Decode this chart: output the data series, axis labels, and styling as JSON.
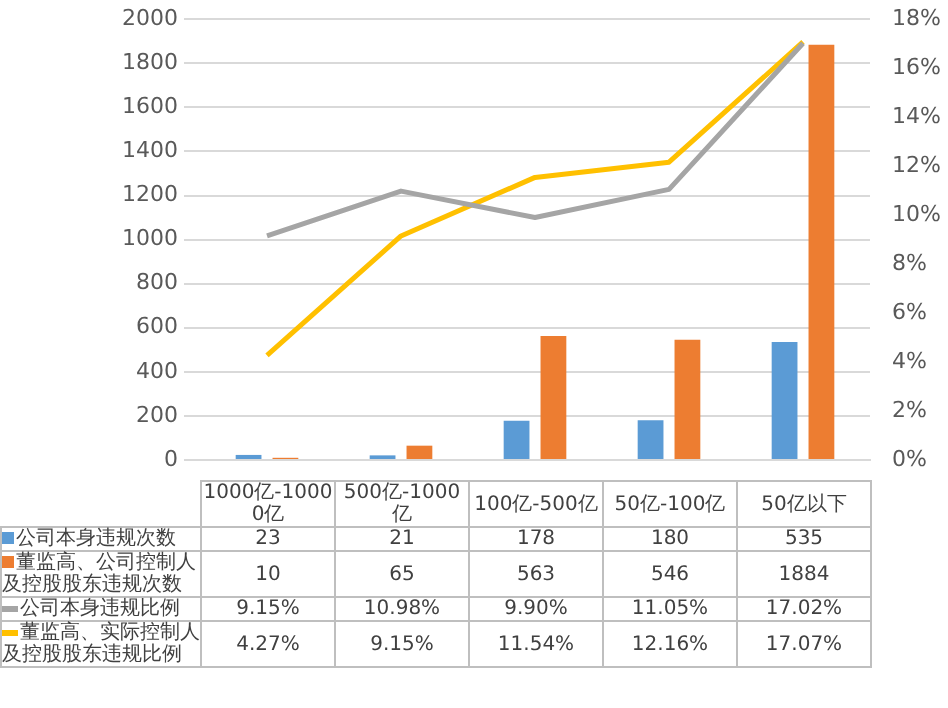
{
  "chart_data": {
    "type": "bar",
    "categories": [
      "1000亿-10000亿",
      "500亿-1000亿",
      "100亿-500亿",
      "50亿-100亿",
      "50亿以下"
    ],
    "series": [
      {
        "name": "公司本身违规次数",
        "color": "#5b9bd5",
        "values": [
          23,
          21,
          178,
          180,
          535
        ],
        "value_labels": [
          "23",
          "21",
          "178",
          "180",
          "535"
        ]
      },
      {
        "name": "董监高、公司控制人及控股股东违规次数",
        "color": "#ed7d31",
        "values": [
          10,
          65,
          563,
          546,
          1884
        ],
        "value_labels": [
          "10",
          "65",
          "563",
          "546",
          "1884"
        ]
      },
      {
        "name": "公司本身违规比例",
        "type": "line",
        "axis": "y2",
        "color": "#a5a5a5",
        "values": [
          9.15,
          10.98,
          9.9,
          11.05,
          17.02
        ],
        "value_labels": [
          "9.15%",
          "10.98%",
          "9.90%",
          "11.05%",
          "17.02%"
        ]
      },
      {
        "name": "董监高、实际控制人及控股股东违规比例",
        "type": "line",
        "axis": "y2",
        "color": "#ffc000",
        "values": [
          4.27,
          9.15,
          11.54,
          12.16,
          17.07
        ],
        "value_labels": [
          "4.27%",
          "9.15%",
          "11.54%",
          "12.16%",
          "17.07%"
        ]
      }
    ],
    "ylim": [
      0,
      2000
    ],
    "yticks": [
      0,
      200,
      400,
      600,
      800,
      1000,
      1200,
      1400,
      1600,
      1800,
      2000
    ],
    "y2lim": [
      0,
      18
    ],
    "y2ticks": [
      {
        "value": 0,
        "label": "0%"
      },
      {
        "value": 2,
        "label": "2%"
      },
      {
        "value": 4,
        "label": "4%"
      },
      {
        "value": 6,
        "label": "6%"
      },
      {
        "value": 8,
        "label": "8%"
      },
      {
        "value": 10,
        "label": "10%"
      },
      {
        "value": 12,
        "label": "12%"
      },
      {
        "value": 14,
        "label": "14%"
      },
      {
        "value": 16,
        "label": "16%"
      },
      {
        "value": 18,
        "label": "18%"
      }
    ],
    "grid": "y",
    "legend": "bottom",
    "marker": "none",
    "line_style": "solid"
  }
}
